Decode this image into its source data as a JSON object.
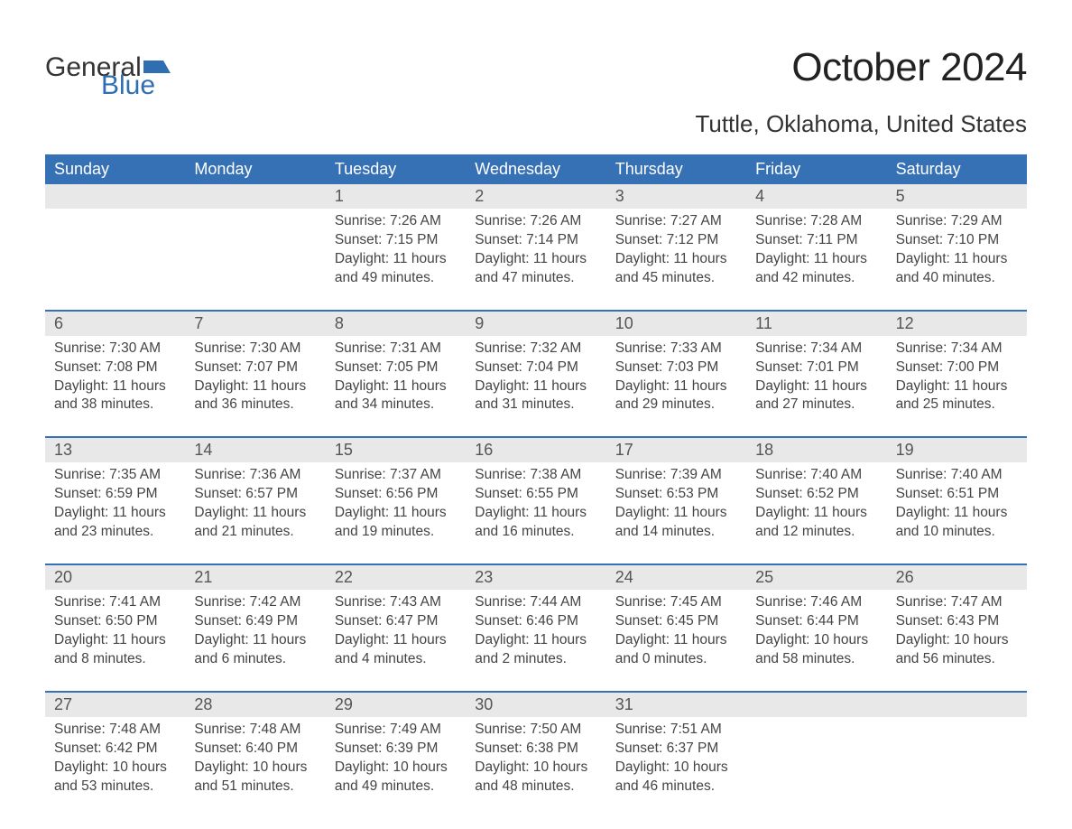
{
  "logo": {
    "text1": "General",
    "text2": "Blue"
  },
  "title": "October 2024",
  "location": "Tuttle, Oklahoma, United States",
  "colors": {
    "header_bg": "#3771b5",
    "header_text": "#ffffff",
    "daynum_bg": "#e8e8e8",
    "week_border": "#3771b5",
    "text": "#444444",
    "logo_blue": "#2f6fb1"
  },
  "typography": {
    "title_fontsize": 44,
    "location_fontsize": 26,
    "header_fontsize": 18,
    "daynum_fontsize": 18,
    "cell_fontsize": 15.5
  },
  "day_names": [
    "Sunday",
    "Monday",
    "Tuesday",
    "Wednesday",
    "Thursday",
    "Friday",
    "Saturday"
  ],
  "weeks": [
    {
      "nums": [
        "",
        "",
        "1",
        "2",
        "3",
        "4",
        "5"
      ],
      "cells": [
        {},
        {},
        {
          "sunrise": "Sunrise: 7:26 AM",
          "sunset": "Sunset: 7:15 PM",
          "d1": "Daylight: 11 hours",
          "d2": "and 49 minutes."
        },
        {
          "sunrise": "Sunrise: 7:26 AM",
          "sunset": "Sunset: 7:14 PM",
          "d1": "Daylight: 11 hours",
          "d2": "and 47 minutes."
        },
        {
          "sunrise": "Sunrise: 7:27 AM",
          "sunset": "Sunset: 7:12 PM",
          "d1": "Daylight: 11 hours",
          "d2": "and 45 minutes."
        },
        {
          "sunrise": "Sunrise: 7:28 AM",
          "sunset": "Sunset: 7:11 PM",
          "d1": "Daylight: 11 hours",
          "d2": "and 42 minutes."
        },
        {
          "sunrise": "Sunrise: 7:29 AM",
          "sunset": "Sunset: 7:10 PM",
          "d1": "Daylight: 11 hours",
          "d2": "and 40 minutes."
        }
      ]
    },
    {
      "nums": [
        "6",
        "7",
        "8",
        "9",
        "10",
        "11",
        "12"
      ],
      "cells": [
        {
          "sunrise": "Sunrise: 7:30 AM",
          "sunset": "Sunset: 7:08 PM",
          "d1": "Daylight: 11 hours",
          "d2": "and 38 minutes."
        },
        {
          "sunrise": "Sunrise: 7:30 AM",
          "sunset": "Sunset: 7:07 PM",
          "d1": "Daylight: 11 hours",
          "d2": "and 36 minutes."
        },
        {
          "sunrise": "Sunrise: 7:31 AM",
          "sunset": "Sunset: 7:05 PM",
          "d1": "Daylight: 11 hours",
          "d2": "and 34 minutes."
        },
        {
          "sunrise": "Sunrise: 7:32 AM",
          "sunset": "Sunset: 7:04 PM",
          "d1": "Daylight: 11 hours",
          "d2": "and 31 minutes."
        },
        {
          "sunrise": "Sunrise: 7:33 AM",
          "sunset": "Sunset: 7:03 PM",
          "d1": "Daylight: 11 hours",
          "d2": "and 29 minutes."
        },
        {
          "sunrise": "Sunrise: 7:34 AM",
          "sunset": "Sunset: 7:01 PM",
          "d1": "Daylight: 11 hours",
          "d2": "and 27 minutes."
        },
        {
          "sunrise": "Sunrise: 7:34 AM",
          "sunset": "Sunset: 7:00 PM",
          "d1": "Daylight: 11 hours",
          "d2": "and 25 minutes."
        }
      ]
    },
    {
      "nums": [
        "13",
        "14",
        "15",
        "16",
        "17",
        "18",
        "19"
      ],
      "cells": [
        {
          "sunrise": "Sunrise: 7:35 AM",
          "sunset": "Sunset: 6:59 PM",
          "d1": "Daylight: 11 hours",
          "d2": "and 23 minutes."
        },
        {
          "sunrise": "Sunrise: 7:36 AM",
          "sunset": "Sunset: 6:57 PM",
          "d1": "Daylight: 11 hours",
          "d2": "and 21 minutes."
        },
        {
          "sunrise": "Sunrise: 7:37 AM",
          "sunset": "Sunset: 6:56 PM",
          "d1": "Daylight: 11 hours",
          "d2": "and 19 minutes."
        },
        {
          "sunrise": "Sunrise: 7:38 AM",
          "sunset": "Sunset: 6:55 PM",
          "d1": "Daylight: 11 hours",
          "d2": "and 16 minutes."
        },
        {
          "sunrise": "Sunrise: 7:39 AM",
          "sunset": "Sunset: 6:53 PM",
          "d1": "Daylight: 11 hours",
          "d2": "and 14 minutes."
        },
        {
          "sunrise": "Sunrise: 7:40 AM",
          "sunset": "Sunset: 6:52 PM",
          "d1": "Daylight: 11 hours",
          "d2": "and 12 minutes."
        },
        {
          "sunrise": "Sunrise: 7:40 AM",
          "sunset": "Sunset: 6:51 PM",
          "d1": "Daylight: 11 hours",
          "d2": "and 10 minutes."
        }
      ]
    },
    {
      "nums": [
        "20",
        "21",
        "22",
        "23",
        "24",
        "25",
        "26"
      ],
      "cells": [
        {
          "sunrise": "Sunrise: 7:41 AM",
          "sunset": "Sunset: 6:50 PM",
          "d1": "Daylight: 11 hours",
          "d2": "and 8 minutes."
        },
        {
          "sunrise": "Sunrise: 7:42 AM",
          "sunset": "Sunset: 6:49 PM",
          "d1": "Daylight: 11 hours",
          "d2": "and 6 minutes."
        },
        {
          "sunrise": "Sunrise: 7:43 AM",
          "sunset": "Sunset: 6:47 PM",
          "d1": "Daylight: 11 hours",
          "d2": "and 4 minutes."
        },
        {
          "sunrise": "Sunrise: 7:44 AM",
          "sunset": "Sunset: 6:46 PM",
          "d1": "Daylight: 11 hours",
          "d2": "and 2 minutes."
        },
        {
          "sunrise": "Sunrise: 7:45 AM",
          "sunset": "Sunset: 6:45 PM",
          "d1": "Daylight: 11 hours",
          "d2": "and 0 minutes."
        },
        {
          "sunrise": "Sunrise: 7:46 AM",
          "sunset": "Sunset: 6:44 PM",
          "d1": "Daylight: 10 hours",
          "d2": "and 58 minutes."
        },
        {
          "sunrise": "Sunrise: 7:47 AM",
          "sunset": "Sunset: 6:43 PM",
          "d1": "Daylight: 10 hours",
          "d2": "and 56 minutes."
        }
      ]
    },
    {
      "nums": [
        "27",
        "28",
        "29",
        "30",
        "31",
        "",
        ""
      ],
      "cells": [
        {
          "sunrise": "Sunrise: 7:48 AM",
          "sunset": "Sunset: 6:42 PM",
          "d1": "Daylight: 10 hours",
          "d2": "and 53 minutes."
        },
        {
          "sunrise": "Sunrise: 7:48 AM",
          "sunset": "Sunset: 6:40 PM",
          "d1": "Daylight: 10 hours",
          "d2": "and 51 minutes."
        },
        {
          "sunrise": "Sunrise: 7:49 AM",
          "sunset": "Sunset: 6:39 PM",
          "d1": "Daylight: 10 hours",
          "d2": "and 49 minutes."
        },
        {
          "sunrise": "Sunrise: 7:50 AM",
          "sunset": "Sunset: 6:38 PM",
          "d1": "Daylight: 10 hours",
          "d2": "and 48 minutes."
        },
        {
          "sunrise": "Sunrise: 7:51 AM",
          "sunset": "Sunset: 6:37 PM",
          "d1": "Daylight: 10 hours",
          "d2": "and 46 minutes."
        },
        {},
        {}
      ]
    }
  ]
}
